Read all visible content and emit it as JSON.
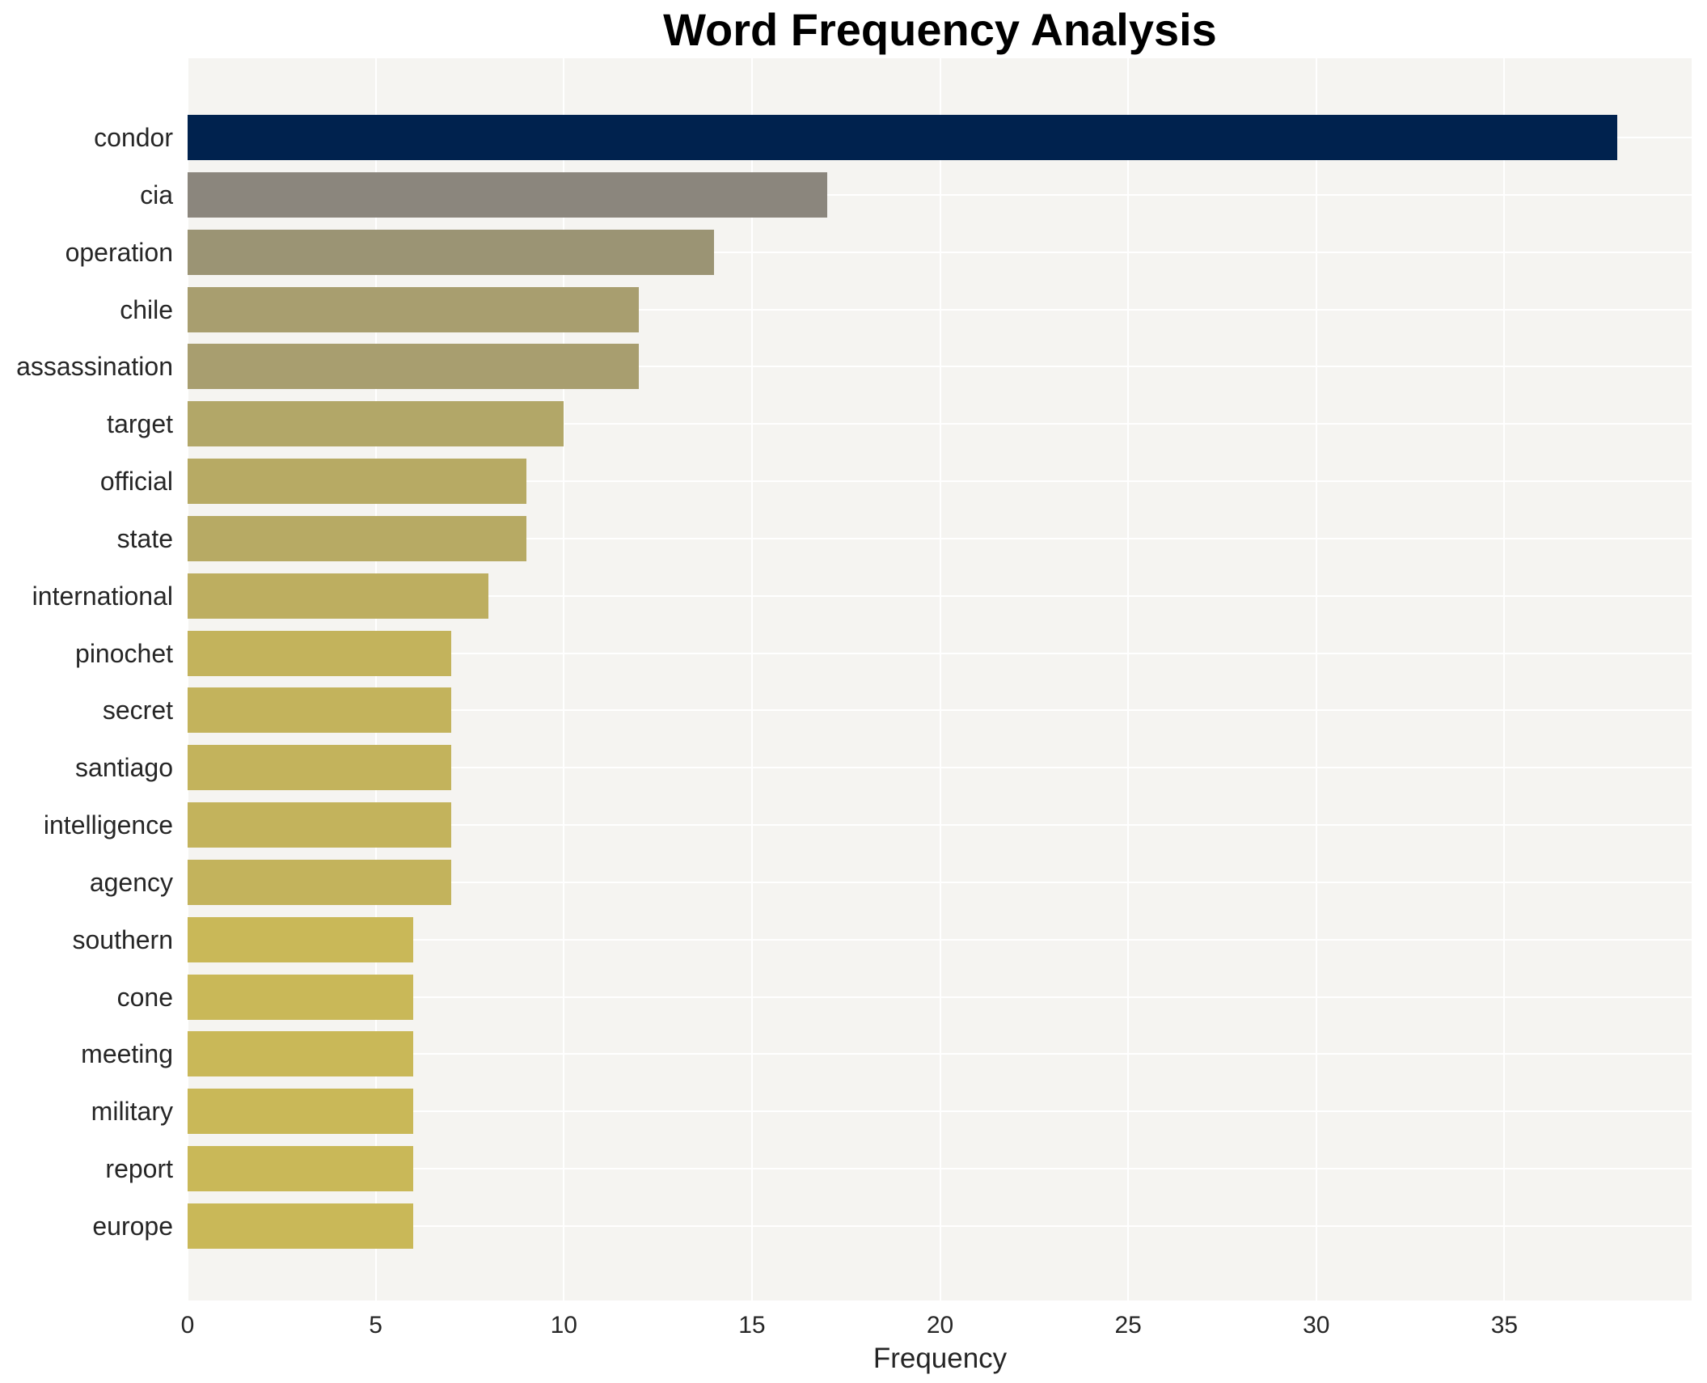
{
  "title": "Word Frequency Analysis",
  "chart_data": {
    "type": "bar",
    "orientation": "horizontal",
    "title": "Word Frequency Analysis",
    "xlabel": "Frequency",
    "ylabel": "",
    "categories": [
      "condor",
      "cia",
      "operation",
      "chile",
      "assassination",
      "target",
      "official",
      "state",
      "international",
      "pinochet",
      "secret",
      "santiago",
      "intelligence",
      "agency",
      "southern",
      "cone",
      "meeting",
      "military",
      "report",
      "europe"
    ],
    "values": [
      38,
      17,
      14,
      12,
      12,
      10,
      9,
      9,
      8,
      7,
      7,
      7,
      7,
      7,
      6,
      6,
      6,
      6,
      6,
      6
    ],
    "bar_colors": [
      "#00224e",
      "#8b867d",
      "#9b9474",
      "#a89e6f",
      "#a89e6f",
      "#b2a768",
      "#b7aa64",
      "#b7aa64",
      "#bdae60",
      "#c3b35c",
      "#c3b35c",
      "#c3b35c",
      "#c3b35c",
      "#c3b35c",
      "#c9b858",
      "#c9b858",
      "#c9b858",
      "#c9b858",
      "#c9b858",
      "#c9b858"
    ],
    "xlim": [
      0,
      40
    ],
    "xticks": [
      0,
      5,
      10,
      15,
      20,
      25,
      30,
      35
    ],
    "grid": "on",
    "grid_color": "#ffffff",
    "plot_background": "#f5f4f1",
    "figure_background": "#ffffff",
    "text_color": "#262626",
    "legend": null
  }
}
